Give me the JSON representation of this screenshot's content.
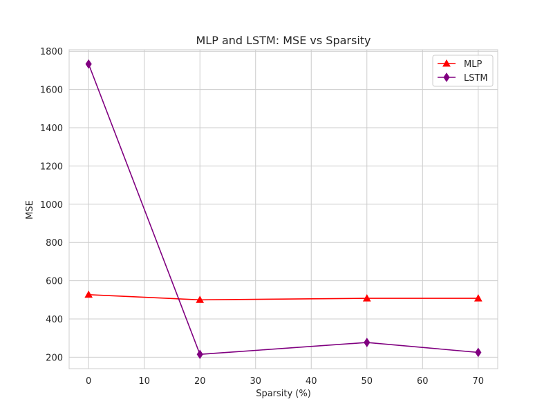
{
  "chart_data": {
    "type": "line",
    "title": "MLP and LSTM: MSE vs Sparsity",
    "xlabel": "Sparsity (%)",
    "ylabel": "MSE",
    "x": [
      0,
      20,
      50,
      70
    ],
    "xlim": [
      -3.5,
      73.5
    ],
    "ylim": [
      140,
      1808
    ],
    "xticks": [
      0,
      10,
      20,
      30,
      40,
      50,
      60,
      70
    ],
    "yticks": [
      200,
      400,
      600,
      800,
      1000,
      1200,
      1400,
      1600,
      1800
    ],
    "grid": true,
    "legend_position": "top-right",
    "series": [
      {
        "name": "MLP",
        "values": [
          527,
          500,
          508,
          508
        ],
        "color": "#ff0000",
        "marker": "triangle"
      },
      {
        "name": "LSTM",
        "values": [
          1733,
          215,
          277,
          225
        ],
        "color": "#800080",
        "marker": "diamond"
      }
    ]
  }
}
